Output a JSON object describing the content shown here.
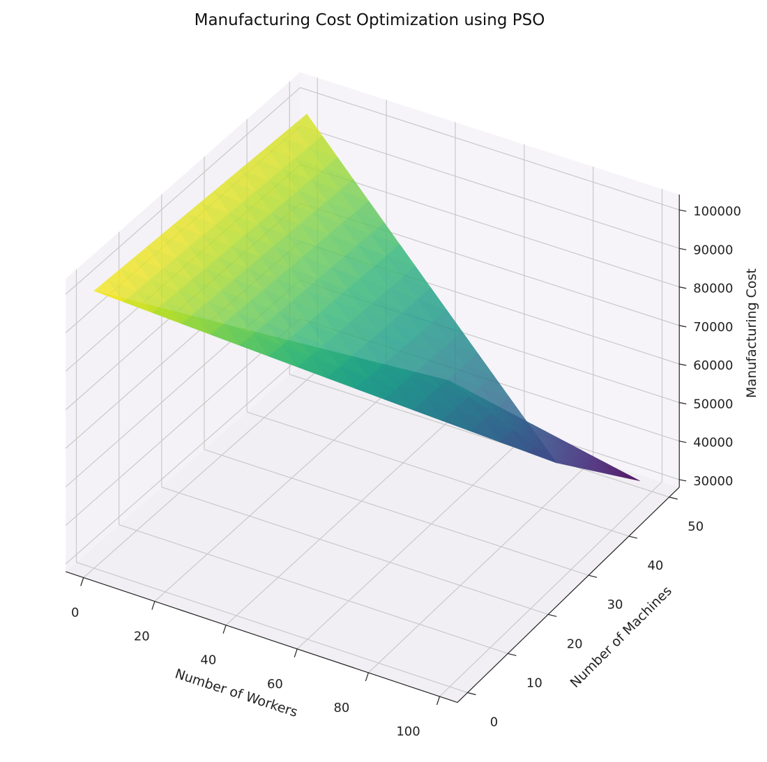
{
  "chart_data": {
    "type": "surface",
    "title": "Manufacturing Cost Optimization using PSO",
    "xlabel": "Number of Workers",
    "ylabel": "Number of Machines",
    "zlabel": "Manufacturing Cost",
    "xlim": [
      -5,
      105
    ],
    "ylim": [
      -2.5,
      52.5
    ],
    "zlim": [
      28000,
      104000
    ],
    "xticks": [
      "0",
      "20",
      "40",
      "60",
      "80",
      "100"
    ],
    "yticks": [
      "0",
      "10",
      "20",
      "30",
      "40",
      "50"
    ],
    "zticks": [
      "30000",
      "40000",
      "50000",
      "60000",
      "70000",
      "80000",
      "90000",
      "100000"
    ],
    "grid": true,
    "colormap": "viridis",
    "surface_vertices": [
      {
        "workers": 0,
        "machines": 50,
        "cost": 97000
      },
      {
        "workers": 0,
        "machines": 0,
        "cost": 100000
      },
      {
        "workers": 65,
        "machines": 30,
        "cost": 66700
      },
      {
        "workers": 90,
        "machines": 35,
        "cost": 47700
      },
      {
        "workers": 100,
        "machines": 47,
        "cost": 33800
      }
    ],
    "surface_triangles": [
      [
        1,
        2,
        3
      ],
      [
        1,
        0,
        3
      ],
      [
        2,
        3,
        4
      ]
    ]
  }
}
